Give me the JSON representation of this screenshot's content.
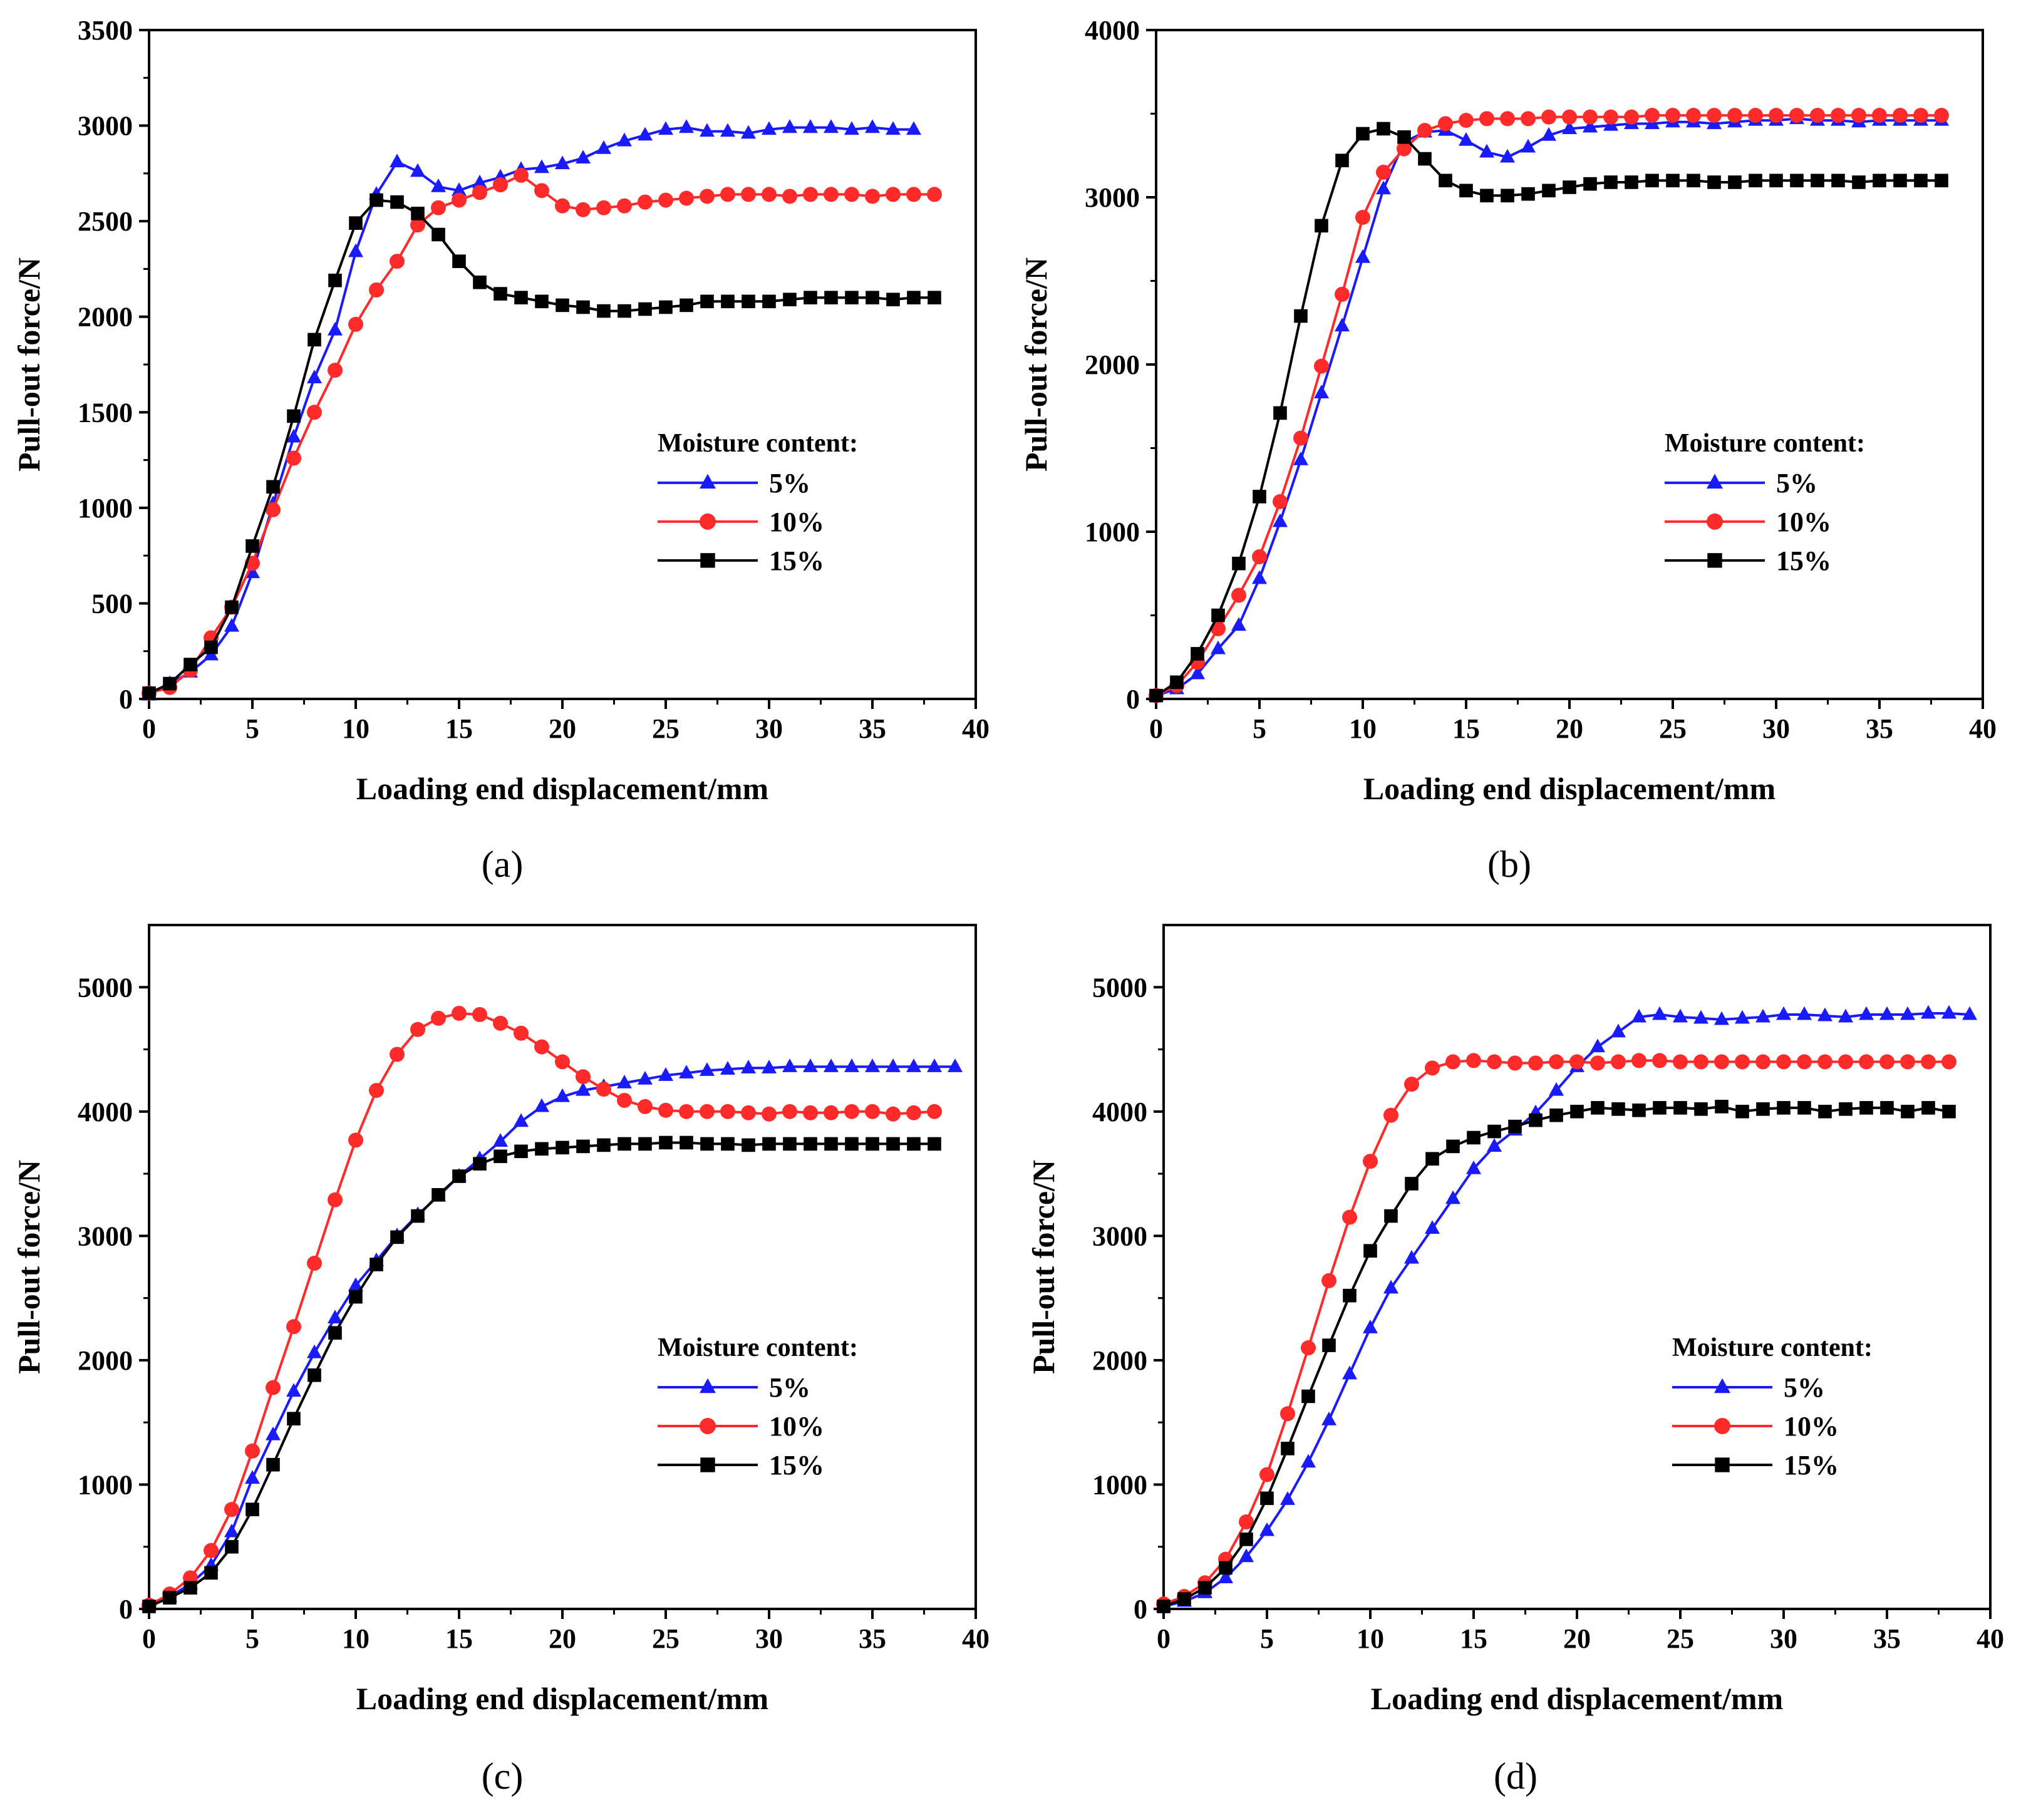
{
  "legend_title": "Moisture content:",
  "series_colors": {
    "5%": "#1a1aff",
    "10%": "#ff2a2a",
    "15%": "#000000"
  },
  "series_markers": {
    "5%": "triangle",
    "10%": "circle",
    "15%": "square"
  },
  "chart_data": [
    {
      "type": "line",
      "caption": "(a)",
      "xlabel": "Loading end displacement/mm",
      "ylabel": "Pull-out force/N",
      "xlim": [
        0,
        40
      ],
      "ylim": [
        0,
        3500
      ],
      "xticks": [
        0,
        5,
        10,
        15,
        20,
        25,
        30,
        35,
        40
      ],
      "yticks": [
        0,
        500,
        1000,
        1500,
        2000,
        2500,
        3000,
        3500
      ],
      "legend_position": "center-right",
      "series": [
        {
          "name": "5%",
          "marker": "triangle",
          "x": [
            0,
            1,
            2,
            3,
            4,
            5,
            6,
            7,
            8,
            9,
            10,
            11,
            12,
            13,
            14,
            15,
            16,
            17,
            18,
            19,
            20,
            21,
            22,
            23,
            24,
            25,
            26,
            27,
            28,
            29,
            30,
            31,
            32,
            33,
            34,
            35,
            36,
            37
          ],
          "y": [
            20,
            80,
            140,
            230,
            380,
            660,
            1020,
            1370,
            1680,
            1930,
            2340,
            2640,
            2810,
            2760,
            2680,
            2660,
            2700,
            2730,
            2770,
            2780,
            2800,
            2830,
            2880,
            2920,
            2950,
            2980,
            2990,
            2970,
            2970,
            2960,
            2980,
            2990,
            2990,
            2990,
            2980,
            2990,
            2980,
            2980
          ]
        },
        {
          "name": "10%",
          "marker": "circle",
          "x": [
            0,
            1,
            2,
            3,
            4,
            5,
            6,
            7,
            8,
            9,
            10,
            11,
            12,
            13,
            14,
            15,
            16,
            17,
            18,
            19,
            20,
            21,
            22,
            23,
            24,
            25,
            26,
            27,
            28,
            29,
            30,
            31,
            32,
            33,
            34,
            35,
            36,
            37,
            38
          ],
          "y": [
            30,
            60,
            150,
            320,
            480,
            710,
            990,
            1260,
            1500,
            1720,
            1960,
            2140,
            2290,
            2480,
            2570,
            2610,
            2650,
            2690,
            2740,
            2660,
            2580,
            2560,
            2570,
            2580,
            2600,
            2610,
            2620,
            2630,
            2640,
            2640,
            2640,
            2630,
            2640,
            2640,
            2640,
            2630,
            2640,
            2640,
            2640
          ]
        },
        {
          "name": "15%",
          "marker": "square",
          "x": [
            0,
            1,
            2,
            3,
            4,
            5,
            6,
            7,
            8,
            9,
            10,
            11,
            12,
            13,
            14,
            15,
            16,
            17,
            18,
            19,
            20,
            21,
            22,
            23,
            24,
            25,
            26,
            27,
            28,
            29,
            30,
            31,
            32,
            33,
            34,
            35,
            36,
            37,
            38
          ],
          "y": [
            30,
            80,
            180,
            270,
            480,
            800,
            1110,
            1480,
            1880,
            2190,
            2490,
            2610,
            2600,
            2540,
            2430,
            2290,
            2180,
            2120,
            2100,
            2080,
            2060,
            2050,
            2030,
            2030,
            2040,
            2050,
            2060,
            2080,
            2080,
            2080,
            2080,
            2090,
            2100,
            2100,
            2100,
            2100,
            2090,
            2100,
            2100
          ]
        }
      ]
    },
    {
      "type": "line",
      "caption": "(b)",
      "xlabel": "Loading end displacement/mm",
      "ylabel": "Pull-out force/N",
      "xlim": [
        0,
        40
      ],
      "ylim": [
        0,
        4000
      ],
      "xticks": [
        0,
        5,
        10,
        15,
        20,
        25,
        30,
        35,
        40
      ],
      "yticks": [
        0,
        1000,
        2000,
        3000,
        4000
      ],
      "legend_position": "center-right",
      "series": [
        {
          "name": "5%",
          "marker": "triangle",
          "x": [
            0,
            1,
            2,
            3,
            4,
            5,
            6,
            7,
            8,
            9,
            10,
            11,
            12,
            13,
            14,
            15,
            16,
            17,
            18,
            19,
            20,
            21,
            22,
            23,
            24,
            25,
            26,
            27,
            28,
            29,
            30,
            31,
            32,
            33,
            34,
            35,
            36,
            37,
            38
          ],
          "y": [
            20,
            60,
            150,
            300,
            440,
            720,
            1060,
            1430,
            1830,
            2230,
            2640,
            3050,
            3330,
            3390,
            3400,
            3340,
            3270,
            3240,
            3300,
            3370,
            3410,
            3420,
            3430,
            3440,
            3440,
            3450,
            3450,
            3440,
            3450,
            3460,
            3460,
            3470,
            3460,
            3460,
            3450,
            3460,
            3460,
            3460,
            3460
          ]
        },
        {
          "name": "10%",
          "marker": "circle",
          "x": [
            0,
            1,
            2,
            3,
            4,
            5,
            6,
            7,
            8,
            9,
            10,
            11,
            12,
            13,
            14,
            15,
            16,
            17,
            18,
            19,
            20,
            21,
            22,
            23,
            24,
            25,
            26,
            27,
            28,
            29,
            30,
            31,
            32,
            33,
            34,
            35,
            36,
            37,
            38
          ],
          "y": [
            20,
            80,
            220,
            420,
            620,
            850,
            1180,
            1560,
            1990,
            2420,
            2880,
            3150,
            3290,
            3400,
            3440,
            3460,
            3470,
            3470,
            3470,
            3480,
            3480,
            3480,
            3480,
            3480,
            3490,
            3490,
            3490,
            3490,
            3490,
            3490,
            3490,
            3490,
            3490,
            3490,
            3490,
            3490,
            3490,
            3490,
            3490
          ]
        },
        {
          "name": "15%",
          "marker": "square",
          "x": [
            0,
            1,
            2,
            3,
            4,
            5,
            6,
            7,
            8,
            9,
            10,
            11,
            12,
            13,
            14,
            15,
            16,
            17,
            18,
            19,
            20,
            21,
            22,
            23,
            24,
            25,
            26,
            27,
            28,
            29,
            30,
            31,
            32,
            33,
            34,
            35,
            36,
            37,
            38
          ],
          "y": [
            20,
            100,
            270,
            500,
            810,
            1210,
            1710,
            2290,
            2830,
            3220,
            3380,
            3410,
            3360,
            3230,
            3100,
            3040,
            3010,
            3010,
            3020,
            3040,
            3060,
            3080,
            3090,
            3090,
            3100,
            3100,
            3100,
            3090,
            3090,
            3100,
            3100,
            3100,
            3100,
            3100,
            3090,
            3100,
            3100,
            3100,
            3100
          ]
        }
      ]
    },
    {
      "type": "line",
      "caption": "(c)",
      "xlabel": "Loading end displacement/mm",
      "ylabel": "Pull-out force/N",
      "xlim": [
        0,
        40
      ],
      "ylim": [
        0,
        5500
      ],
      "xticks": [
        0,
        5,
        10,
        15,
        20,
        25,
        30,
        35,
        40
      ],
      "yticks": [
        0,
        1000,
        2000,
        3000,
        4000,
        5000
      ],
      "legend_position": "center-right",
      "series": [
        {
          "name": "5%",
          "marker": "triangle",
          "x": [
            0,
            1,
            2,
            3,
            4,
            5,
            6,
            7,
            8,
            9,
            10,
            11,
            12,
            13,
            14,
            15,
            16,
            17,
            18,
            19,
            20,
            21,
            22,
            23,
            24,
            25,
            26,
            27,
            28,
            29,
            30,
            31,
            32,
            33,
            34,
            35,
            36,
            37,
            38,
            39
          ],
          "y": [
            30,
            100,
            200,
            350,
            620,
            1050,
            1400,
            1750,
            2060,
            2340,
            2600,
            2800,
            3000,
            3170,
            3320,
            3480,
            3620,
            3760,
            3920,
            4040,
            4120,
            4170,
            4200,
            4230,
            4260,
            4290,
            4310,
            4330,
            4340,
            4350,
            4350,
            4360,
            4360,
            4360,
            4360,
            4360,
            4360,
            4360,
            4360,
            4360
          ]
        },
        {
          "name": "10%",
          "marker": "circle",
          "x": [
            0,
            1,
            2,
            3,
            4,
            5,
            6,
            7,
            8,
            9,
            10,
            11,
            12,
            13,
            14,
            15,
            16,
            17,
            18,
            19,
            20,
            21,
            22,
            23,
            24,
            25,
            26,
            27,
            28,
            29,
            30,
            31,
            32,
            33,
            34,
            35,
            36,
            37,
            38
          ],
          "y": [
            30,
            120,
            250,
            470,
            800,
            1270,
            1780,
            2270,
            2780,
            3290,
            3770,
            4170,
            4460,
            4660,
            4750,
            4790,
            4780,
            4710,
            4630,
            4520,
            4400,
            4280,
            4180,
            4090,
            4040,
            4010,
            4000,
            4000,
            4000,
            3990,
            3980,
            4000,
            3990,
            3990,
            4000,
            4000,
            3980,
            3990,
            4000
          ]
        },
        {
          "name": "15%",
          "marker": "square",
          "x": [
            0,
            1,
            2,
            3,
            4,
            5,
            6,
            7,
            8,
            9,
            10,
            11,
            12,
            13,
            14,
            15,
            16,
            17,
            18,
            19,
            20,
            21,
            22,
            23,
            24,
            25,
            26,
            27,
            28,
            29,
            30,
            31,
            32,
            33,
            34,
            35,
            36,
            37,
            38
          ],
          "y": [
            20,
            90,
            170,
            290,
            500,
            800,
            1160,
            1530,
            1880,
            2220,
            2510,
            2770,
            2990,
            3160,
            3330,
            3480,
            3580,
            3640,
            3680,
            3700,
            3710,
            3720,
            3730,
            3740,
            3740,
            3750,
            3750,
            3740,
            3740,
            3730,
            3740,
            3740,
            3740,
            3740,
            3740,
            3740,
            3740,
            3740,
            3740
          ]
        }
      ]
    },
    {
      "type": "line",
      "caption": "(d)",
      "xlabel": "Loading end displacement/mm",
      "ylabel": "Pull-out force/N",
      "xlim": [
        0,
        40
      ],
      "ylim": [
        0,
        5500
      ],
      "xticks": [
        0,
        5,
        10,
        15,
        20,
        25,
        30,
        35,
        40
      ],
      "yticks": [
        0,
        1000,
        2000,
        3000,
        4000,
        5000
      ],
      "legend_position": "center-right",
      "series": [
        {
          "name": "5%",
          "marker": "triangle",
          "x": [
            0,
            1,
            2,
            3,
            4,
            5,
            6,
            7,
            8,
            9,
            10,
            11,
            12,
            13,
            14,
            15,
            16,
            17,
            18,
            19,
            20,
            21,
            22,
            23,
            24,
            25,
            26,
            27,
            28,
            29,
            30,
            31,
            32,
            33,
            34,
            35,
            36,
            37,
            38,
            39
          ],
          "y": [
            20,
            60,
            130,
            250,
            420,
            630,
            880,
            1180,
            1520,
            1890,
            2260,
            2580,
            2820,
            3060,
            3300,
            3540,
            3720,
            3850,
            3990,
            4170,
            4360,
            4520,
            4640,
            4760,
            4780,
            4760,
            4750,
            4740,
            4750,
            4760,
            4780,
            4780,
            4770,
            4760,
            4780,
            4780,
            4780,
            4790,
            4790,
            4780
          ]
        },
        {
          "name": "10%",
          "marker": "circle",
          "x": [
            0,
            1,
            2,
            3,
            4,
            5,
            6,
            7,
            8,
            9,
            10,
            11,
            12,
            13,
            14,
            15,
            16,
            17,
            18,
            19,
            20,
            21,
            22,
            23,
            24,
            25,
            26,
            27,
            28,
            29,
            30,
            31,
            32,
            33,
            34,
            35,
            36,
            37,
            38
          ],
          "y": [
            40,
            100,
            210,
            400,
            700,
            1080,
            1570,
            2100,
            2640,
            3150,
            3600,
            3970,
            4220,
            4350,
            4400,
            4410,
            4400,
            4390,
            4390,
            4400,
            4400,
            4390,
            4400,
            4410,
            4410,
            4400,
            4400,
            4400,
            4400,
            4400,
            4400,
            4400,
            4400,
            4400,
            4400,
            4400,
            4400,
            4400,
            4400
          ]
        },
        {
          "name": "15%",
          "marker": "square",
          "x": [
            0,
            1,
            2,
            3,
            4,
            5,
            6,
            7,
            8,
            9,
            10,
            11,
            12,
            13,
            14,
            15,
            16,
            17,
            18,
            19,
            20,
            21,
            22,
            23,
            24,
            25,
            26,
            27,
            28,
            29,
            30,
            31,
            32,
            33,
            34,
            35,
            36,
            37,
            38
          ],
          "y": [
            20,
            80,
            170,
            330,
            560,
            890,
            1290,
            1710,
            2120,
            2520,
            2880,
            3160,
            3420,
            3620,
            3720,
            3790,
            3840,
            3880,
            3930,
            3970,
            4000,
            4030,
            4020,
            4010,
            4030,
            4030,
            4020,
            4040,
            4000,
            4020,
            4030,
            4030,
            4000,
            4020,
            4030,
            4030,
            4000,
            4030,
            4000
          ]
        }
      ]
    }
  ]
}
